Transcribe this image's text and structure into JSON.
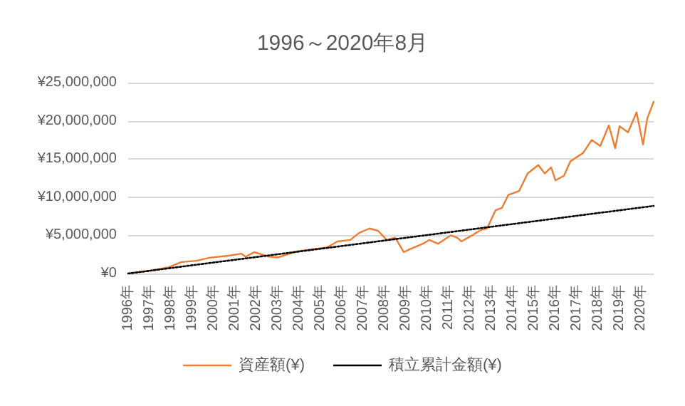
{
  "chart_data": {
    "type": "line",
    "title": "1996～2020年8月",
    "xlim": [
      1996,
      2020.6
    ],
    "xticks": [
      {
        "value": 1996,
        "label": "1996年"
      },
      {
        "value": 1997,
        "label": "1997年"
      },
      {
        "value": 1998,
        "label": "1998年"
      },
      {
        "value": 1999,
        "label": "1999年"
      },
      {
        "value": 2000,
        "label": "2000年"
      },
      {
        "value": 2001,
        "label": "2001年"
      },
      {
        "value": 2002,
        "label": "2002年"
      },
      {
        "value": 2003,
        "label": "2003年"
      },
      {
        "value": 2004,
        "label": "2004年"
      },
      {
        "value": 2005,
        "label": "2005年"
      },
      {
        "value": 2006,
        "label": "2006年"
      },
      {
        "value": 2007,
        "label": "2007年"
      },
      {
        "value": 2008,
        "label": "2008年"
      },
      {
        "value": 2009,
        "label": "2009年"
      },
      {
        "value": 2010,
        "label": "2010年"
      },
      {
        "value": 2011,
        "label": "2011年"
      },
      {
        "value": 2012,
        "label": "2012年"
      },
      {
        "value": 2013,
        "label": "2013年"
      },
      {
        "value": 2014,
        "label": "2014年"
      },
      {
        "value": 2015,
        "label": "2015年"
      },
      {
        "value": 2016,
        "label": "2016年"
      },
      {
        "value": 2017,
        "label": "2017年"
      },
      {
        "value": 2018,
        "label": "2018年"
      },
      {
        "value": 2019,
        "label": "2019年"
      },
      {
        "value": 2020,
        "label": "2020年"
      }
    ],
    "ylim": [
      0,
      25000000
    ],
    "yticks": [
      {
        "value": 0,
        "label": "¥0"
      },
      {
        "value": 5000000,
        "label": "¥5,000,000"
      },
      {
        "value": 10000000,
        "label": "¥10,000,000"
      },
      {
        "value": 15000000,
        "label": "¥15,000,000"
      },
      {
        "value": 20000000,
        "label": "¥20,000,000"
      },
      {
        "value": 25000000,
        "label": "¥25,000,000"
      }
    ],
    "grid": "y",
    "legend": "bottom",
    "marker": "none",
    "series": [
      {
        "name": "資産額(¥)",
        "color": "#ed7d31",
        "line_style": "solid",
        "x": [
          1996,
          1997.06,
          1997.9,
          1998.5,
          1999.2,
          1999.8,
          2000.7,
          2001.3,
          2001.5,
          2001.9,
          2002.6,
          2003.0,
          2003.9,
          2004.7,
          2005.3,
          2005.8,
          2006.4,
          2006.8,
          2007.3,
          2007.7,
          2008.1,
          2008.5,
          2008.9,
          2009.2,
          2009.8,
          2010.1,
          2010.5,
          2011.1,
          2011.4,
          2011.6,
          2012.1,
          2012.5,
          2012.8,
          2013.2,
          2013.5,
          2013.8,
          2014.3,
          2014.7,
          2015.2,
          2015.5,
          2015.8,
          2016.0,
          2016.4,
          2016.7,
          2017.3,
          2017.7,
          2018.1,
          2018.5,
          2018.8,
          2019.0,
          2019.4,
          2019.8,
          2020.1,
          2020.3,
          2020.6
        ],
        "values": [
          0,
          390000,
          830000,
          1500000,
          1670000,
          2060000,
          2330000,
          2600000,
          2200000,
          2800000,
          2200000,
          2100000,
          2900000,
          3200000,
          3400000,
          4200000,
          4400000,
          5300000,
          5900000,
          5600000,
          4400000,
          4700000,
          2800000,
          3200000,
          3900000,
          4400000,
          3900000,
          5000000,
          4700000,
          4200000,
          5000000,
          5700000,
          5900000,
          8300000,
          8600000,
          10300000,
          10800000,
          13100000,
          14200000,
          13100000,
          13900000,
          12200000,
          12800000,
          14700000,
          15800000,
          17500000,
          16700000,
          19400000,
          16400000,
          19300000,
          18500000,
          21100000,
          16900000,
          20300000,
          22500000
        ]
      },
      {
        "name": "積立累計金額(¥)",
        "color": "#000000",
        "line_style": "dotted",
        "x": [
          1996,
          2000,
          2005,
          2010,
          2015,
          2020.6
        ],
        "values": [
          0,
          1440000,
          3240000,
          5040000,
          6840000,
          8856000
        ]
      }
    ]
  }
}
